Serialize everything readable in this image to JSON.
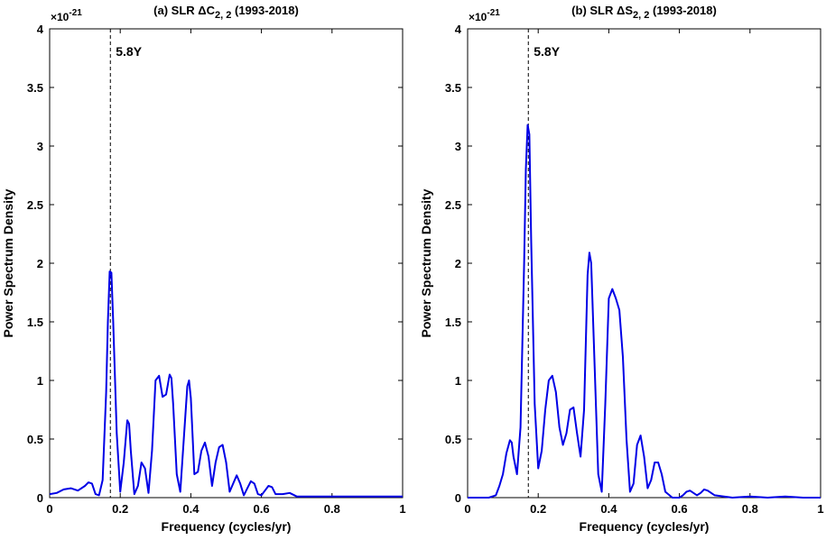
{
  "chart_data": [
    {
      "type": "line",
      "title_prefix": "(a) SLR ",
      "title_symbol": "ΔC",
      "title_subscript": "2, 2",
      "title_suffix": " (1993-2018)",
      "xlabel": "Frequency (cycles/yr)",
      "ylabel": "Power Spectrum Density",
      "exponent_base": "×10",
      "exponent_power": "-21",
      "xlim": [
        0,
        1
      ],
      "ylim": [
        0,
        4
      ],
      "xticks": [
        "0",
        "0.2",
        "0.4",
        "0.6",
        "0.8",
        "1"
      ],
      "yticks": [
        "0",
        "0.5",
        "1",
        "1.5",
        "2",
        "2.5",
        "3",
        "3.5",
        "4"
      ],
      "vline_x": 0.172,
      "annotation": "5.8Y",
      "line_color": "#0000e6",
      "x": [
        0,
        0.02,
        0.04,
        0.06,
        0.08,
        0.1,
        0.11,
        0.12,
        0.13,
        0.14,
        0.15,
        0.16,
        0.165,
        0.17,
        0.175,
        0.18,
        0.19,
        0.2,
        0.21,
        0.22,
        0.225,
        0.23,
        0.24,
        0.25,
        0.26,
        0.27,
        0.28,
        0.29,
        0.3,
        0.31,
        0.32,
        0.33,
        0.34,
        0.345,
        0.35,
        0.36,
        0.37,
        0.38,
        0.39,
        0.395,
        0.4,
        0.41,
        0.42,
        0.43,
        0.44,
        0.45,
        0.46,
        0.47,
        0.48,
        0.49,
        0.5,
        0.51,
        0.52,
        0.53,
        0.54,
        0.55,
        0.56,
        0.57,
        0.58,
        0.59,
        0.6,
        0.61,
        0.62,
        0.63,
        0.64,
        0.66,
        0.68,
        0.7,
        0.75,
        0.8,
        0.85,
        0.9,
        0.95,
        1.0
      ],
      "y": [
        0.03,
        0.04,
        0.07,
        0.08,
        0.06,
        0.1,
        0.13,
        0.12,
        0.03,
        0.02,
        0.15,
        0.9,
        1.5,
        1.93,
        1.92,
        1.5,
        0.55,
        0.05,
        0.3,
        0.66,
        0.63,
        0.4,
        0.03,
        0.1,
        0.3,
        0.25,
        0.04,
        0.4,
        1.0,
        1.04,
        0.86,
        0.88,
        1.05,
        1.02,
        0.8,
        0.2,
        0.05,
        0.5,
        0.95,
        1.0,
        0.85,
        0.2,
        0.22,
        0.4,
        0.47,
        0.35,
        0.1,
        0.3,
        0.43,
        0.45,
        0.3,
        0.05,
        0.12,
        0.19,
        0.12,
        0.02,
        0.08,
        0.14,
        0.12,
        0.03,
        0.02,
        0.06,
        0.1,
        0.09,
        0.03,
        0.03,
        0.04,
        0.01,
        0.01,
        0.01,
        0.01,
        0.01,
        0.01,
        0.01
      ]
    },
    {
      "type": "line",
      "title_prefix": "(b) SLR ",
      "title_symbol": "ΔS",
      "title_subscript": "2, 2",
      "title_suffix": " (1993-2018)",
      "xlabel": "Frequency (cycles/yr)",
      "ylabel": "Power Spectrum Density",
      "exponent_base": "×10",
      "exponent_power": "-21",
      "xlim": [
        0,
        1
      ],
      "ylim": [
        0,
        4
      ],
      "xticks": [
        "0",
        "0.2",
        "0.4",
        "0.6",
        "0.8",
        "1"
      ],
      "yticks": [
        "0",
        "0.5",
        "1",
        "1.5",
        "2",
        "2.5",
        "3",
        "3.5",
        "4"
      ],
      "vline_x": 0.172,
      "annotation": "5.8Y",
      "line_color": "#0000e6",
      "x": [
        0,
        0.03,
        0.06,
        0.08,
        0.09,
        0.1,
        0.11,
        0.12,
        0.125,
        0.13,
        0.14,
        0.15,
        0.16,
        0.165,
        0.17,
        0.175,
        0.18,
        0.19,
        0.2,
        0.21,
        0.22,
        0.23,
        0.24,
        0.25,
        0.26,
        0.27,
        0.28,
        0.29,
        0.3,
        0.31,
        0.32,
        0.33,
        0.34,
        0.345,
        0.35,
        0.36,
        0.37,
        0.38,
        0.39,
        0.4,
        0.41,
        0.42,
        0.43,
        0.44,
        0.45,
        0.46,
        0.47,
        0.48,
        0.49,
        0.5,
        0.51,
        0.52,
        0.53,
        0.54,
        0.55,
        0.56,
        0.58,
        0.6,
        0.61,
        0.62,
        0.63,
        0.64,
        0.65,
        0.66,
        0.67,
        0.68,
        0.7,
        0.75,
        0.8,
        0.85,
        0.9,
        0.95,
        1.0
      ],
      "y": [
        0.0,
        0.0,
        0.0,
        0.02,
        0.1,
        0.2,
        0.38,
        0.49,
        0.47,
        0.35,
        0.2,
        0.6,
        2.0,
        2.8,
        3.18,
        3.1,
        2.2,
        0.8,
        0.25,
        0.4,
        0.75,
        1.0,
        1.04,
        0.9,
        0.6,
        0.45,
        0.55,
        0.75,
        0.77,
        0.55,
        0.35,
        0.75,
        1.9,
        2.09,
        2.0,
        1.1,
        0.2,
        0.05,
        0.8,
        1.7,
        1.78,
        1.7,
        1.6,
        1.2,
        0.5,
        0.05,
        0.12,
        0.45,
        0.53,
        0.35,
        0.08,
        0.15,
        0.3,
        0.3,
        0.2,
        0.05,
        0.0,
        0.0,
        0.02,
        0.05,
        0.06,
        0.04,
        0.02,
        0.04,
        0.07,
        0.06,
        0.02,
        0.0,
        0.01,
        0.0,
        0.01,
        0.0,
        0.0
      ]
    }
  ]
}
